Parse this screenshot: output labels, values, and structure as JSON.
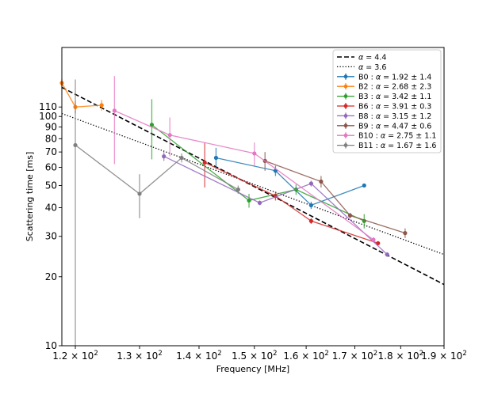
{
  "chart_data": {
    "type": "line",
    "xlabel": "Frequency [MHz]",
    "ylabel": "Scattering time [ms]",
    "xscale": "log",
    "yscale": "log",
    "xlim": [
      118,
      190
    ],
    "ylim": [
      10,
      200
    ],
    "legend_position": "top-right",
    "x_ticks": [
      {
        "value": 120,
        "mant": "1.2",
        "exp": "2"
      },
      {
        "value": 130,
        "mant": "1.3",
        "exp": "2"
      },
      {
        "value": 140,
        "mant": "1.4",
        "exp": "2"
      },
      {
        "value": 150,
        "mant": "1.5",
        "exp": "2"
      },
      {
        "value": 160,
        "mant": "1.6",
        "exp": "2"
      },
      {
        "value": 170,
        "mant": "1.7",
        "exp": "2"
      },
      {
        "value": 180,
        "mant": "1.8",
        "exp": "2"
      },
      {
        "value": 190,
        "mant": "1.9",
        "exp": "2"
      }
    ],
    "y_ticks": [
      {
        "value": 10,
        "label": "10"
      },
      {
        "value": 20,
        "label": "20"
      },
      {
        "value": 30,
        "label": "30"
      },
      {
        "value": 40,
        "label": "40"
      },
      {
        "value": 50,
        "label": "50"
      },
      {
        "value": 60,
        "label": "60"
      },
      {
        "value": 70,
        "label": "70"
      },
      {
        "value": 80,
        "label": "80"
      },
      {
        "value": 90,
        "label": "90"
      },
      {
        "value": 100,
        "label": "100"
      },
      {
        "value": 110,
        "label": "110"
      }
    ],
    "fit_lines": [
      {
        "alpha_value": "4.4",
        "style": "dashed",
        "color": "#000000",
        "points": [
          [
            118,
            134
          ],
          [
            190,
            18.5
          ]
        ]
      },
      {
        "alpha_value": "3.6",
        "style": "dotted",
        "color": "#000000",
        "points": [
          [
            118,
            103
          ],
          [
            190,
            25
          ]
        ]
      }
    ],
    "series": [
      {
        "name": "B0",
        "alpha": "1.92 ± 1.4",
        "color": "#1f77b4",
        "points": [
          {
            "x": 143,
            "y": 66,
            "err": 7
          },
          {
            "x": 154,
            "y": 58,
            "err": 3
          },
          {
            "x": 161,
            "y": 41,
            "err": 1.5
          },
          {
            "x": 172,
            "y": 50,
            "err": 1
          }
        ]
      },
      {
        "name": "B2",
        "alpha": "2.68 ± 2.3",
        "color": "#ff7f0e",
        "points": [
          {
            "x": 118,
            "y": 140,
            "err": 6
          },
          {
            "x": 120,
            "y": 110,
            "err": 7
          },
          {
            "x": 124,
            "y": 112,
            "err": 6
          }
        ]
      },
      {
        "name": "B3",
        "alpha": "3.42 ± 1.1",
        "color": "#2ca02c",
        "points": [
          {
            "x": 132,
            "y": 92,
            "err": 27
          },
          {
            "x": 149,
            "y": 43,
            "err": 3
          },
          {
            "x": 158,
            "y": 48,
            "err": 2.5
          },
          {
            "x": 172,
            "y": 35,
            "err": 2.5
          }
        ]
      },
      {
        "name": "B6",
        "alpha": "3.91 ± 0.3",
        "color": "#d62728",
        "points": [
          {
            "x": 141,
            "y": 63,
            "err": 14
          },
          {
            "x": 154,
            "y": 45,
            "err": 2
          },
          {
            "x": 161,
            "y": 35,
            "err": 1
          },
          {
            "x": 175,
            "y": 28,
            "err": 0.6
          }
        ]
      },
      {
        "name": "B8",
        "alpha": "3.15 ± 1.2",
        "color": "#9467bd",
        "points": [
          {
            "x": 134,
            "y": 67,
            "err": 3
          },
          {
            "x": 151,
            "y": 42,
            "err": 1
          },
          {
            "x": 161,
            "y": 51,
            "err": 1.5
          },
          {
            "x": 177,
            "y": 25,
            "err": 0.6
          }
        ]
      },
      {
        "name": "B9",
        "alpha": "4.47 ± 0.6",
        "color": "#8c564b",
        "points": [
          {
            "x": 152,
            "y": 64,
            "err": 6
          },
          {
            "x": 163,
            "y": 52,
            "err": 3
          },
          {
            "x": 169,
            "y": 37,
            "err": 1
          },
          {
            "x": 181,
            "y": 31,
            "err": 1.5
          }
        ]
      },
      {
        "name": "B10",
        "alpha": "2.75 ± 1.1",
        "color": "#e377c2",
        "points": [
          {
            "x": 126,
            "y": 106,
            "err": 44
          },
          {
            "x": 135,
            "y": 83,
            "err": 16
          },
          {
            "x": 150,
            "y": 69,
            "err": 8
          },
          {
            "x": 174,
            "y": 29,
            "err": 0.7
          }
        ]
      },
      {
        "name": "B11",
        "alpha": "1.67 ± 1.6",
        "color": "#7f7f7f",
        "points": [
          {
            "x": 120,
            "y": 75,
            "err": 70
          },
          {
            "x": 130,
            "y": 46,
            "err": 10
          },
          {
            "x": 137,
            "y": 66,
            "err": 3
          },
          {
            "x": 147,
            "y": 48,
            "err": 2
          }
        ]
      }
    ]
  }
}
